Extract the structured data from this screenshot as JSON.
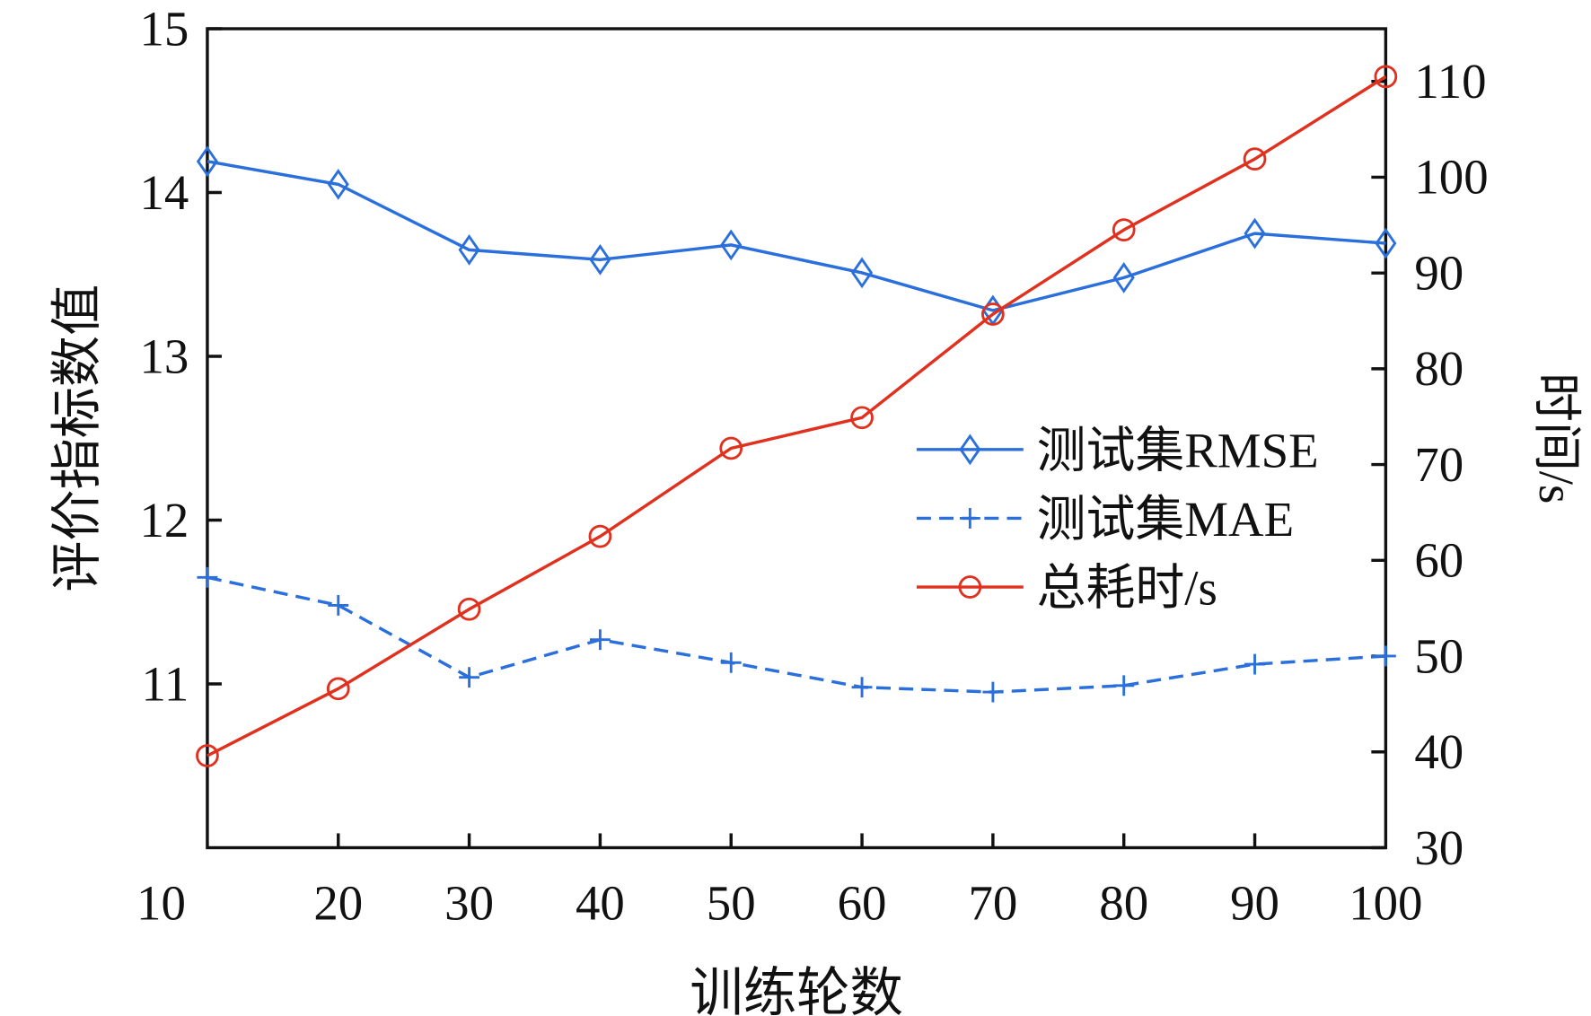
{
  "chart_data": {
    "type": "line",
    "title": "",
    "xlabel": "训练轮数",
    "ylabel": "评价指标数值",
    "y2label": "时间/s",
    "x": [
      10,
      20,
      30,
      40,
      50,
      60,
      70,
      80,
      90,
      100
    ],
    "xlim": [
      10,
      100
    ],
    "ylim": [
      10,
      15
    ],
    "y2lim": [
      30,
      115.5
    ],
    "xticks": [
      "10",
      "20",
      "30",
      "40",
      "50",
      "60",
      "70",
      "80",
      "90",
      "100"
    ],
    "yticks": [
      "11",
      "12",
      "13",
      "14",
      "15"
    ],
    "y2ticks": [
      "30",
      "40",
      "50",
      "60",
      "70",
      "80",
      "90",
      "100",
      "110"
    ],
    "grid": false,
    "legend_position": "center-right",
    "series": [
      {
        "name": "测试集RMSE",
        "axis": "left",
        "color": "#2a6fdb",
        "style": "solid",
        "marker": "diamond",
        "values": [
          14.19,
          14.05,
          13.65,
          13.59,
          13.68,
          13.51,
          13.28,
          13.48,
          13.75,
          13.69
        ]
      },
      {
        "name": "测试集MAE",
        "axis": "left",
        "color": "#2a6fdb",
        "style": "dashed",
        "marker": "plus",
        "values": [
          11.65,
          11.48,
          11.04,
          11.27,
          11.13,
          10.98,
          10.95,
          10.99,
          11.12,
          11.17
        ]
      },
      {
        "name": "总耗时/s",
        "axis": "right",
        "color": "#e0301e",
        "style": "solid",
        "marker": "circle",
        "values": [
          39.6,
          46.6,
          54.9,
          62.5,
          71.7,
          74.9,
          85.7,
          94.5,
          101.9,
          110.5
        ]
      }
    ]
  }
}
